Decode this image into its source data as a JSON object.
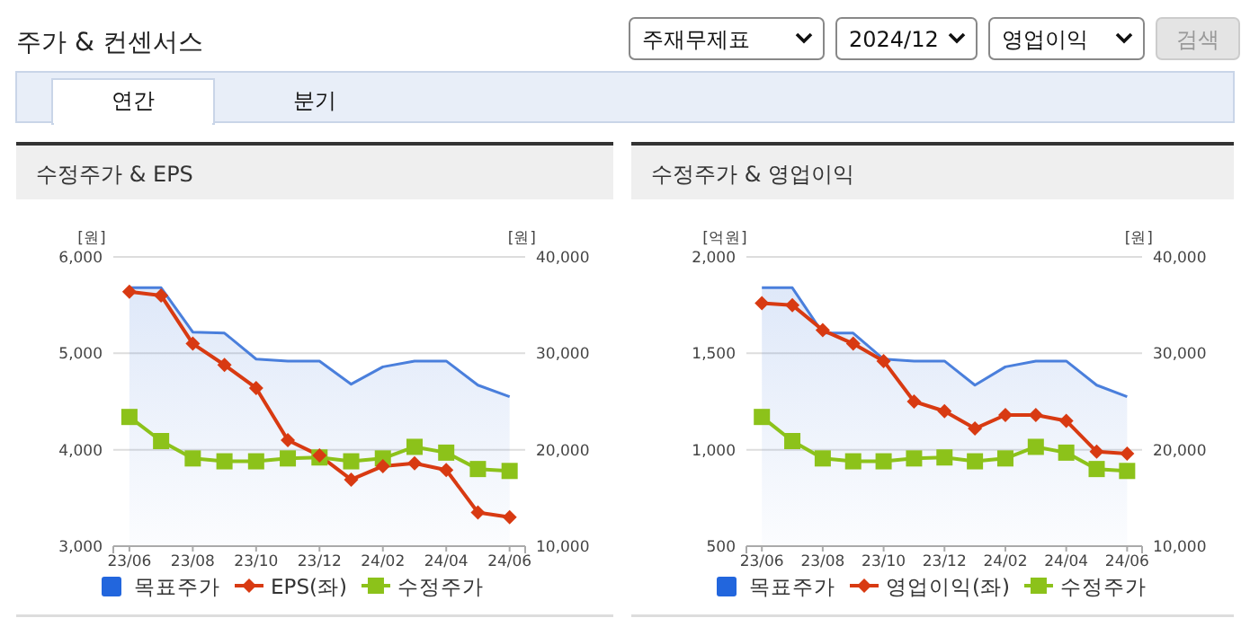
{
  "chart_data": [
    {
      "type": "other",
      "title": "주가 & 컨센서스",
      "annotations": [
        "주재무제표",
        "2024/12",
        "영업이익",
        "검색",
        "연간",
        "분기"
      ]
    },
    {
      "type": "line",
      "title": "수정주가 & EPS",
      "ylabel": "[원]",
      "y2label": "[원]",
      "x": [
        "2023-06",
        "2023-07",
        "2023-08",
        "2023-09",
        "2023-10",
        "2023-11",
        "2023-12",
        "2024-01",
        "2024-02",
        "2024-03",
        "2024-04",
        "2024-05",
        "2024-06"
      ],
      "xlim": [
        "2023-05-16",
        "2024-06-16"
      ],
      "xticks": [
        {
          "value": "2023-06",
          "label": "23/06"
        },
        {
          "value": "2023-08",
          "label": "23/08"
        },
        {
          "value": "2023-10",
          "label": "23/10"
        },
        {
          "value": "2023-12",
          "label": "23/12"
        },
        {
          "value": "2024-02",
          "label": "24/02"
        },
        {
          "value": "2024-04",
          "label": "24/04"
        },
        {
          "value": "2024-06",
          "label": "24/06"
        }
      ],
      "ylim": [
        3000,
        6000
      ],
      "yticks": [
        {
          "value": 3000,
          "label": "3,000"
        },
        {
          "value": 4000,
          "label": "4,000"
        },
        {
          "value": 5000,
          "label": "5,000"
        },
        {
          "value": 6000,
          "label": "6,000"
        }
      ],
      "y2lim": [
        10000,
        40000
      ],
      "y2ticks": [
        {
          "value": 10000,
          "label": "10,000"
        },
        {
          "value": 20000,
          "label": "20,000"
        },
        {
          "value": 30000,
          "label": "30,000"
        },
        {
          "value": 40000,
          "label": "40,000"
        }
      ],
      "grid": "y",
      "legend": "bottom",
      "series": [
        {
          "name": "목표주가",
          "type": "area",
          "axis": "y2",
          "color": "#4a7fdc",
          "marker": "none",
          "values": [
            36800,
            36800,
            32200,
            32100,
            29400,
            29200,
            29200,
            26800,
            28600,
            29200,
            29200,
            26700,
            25500
          ]
        },
        {
          "name": "EPS(좌)",
          "type": "line",
          "color": "#d83a12",
          "marker": "diamond",
          "values": [
            5640,
            5600,
            5100,
            4880,
            4640,
            4100,
            3940,
            3690,
            3830,
            3860,
            3790,
            3350,
            3300
          ]
        },
        {
          "name": "수정주가",
          "type": "line",
          "axis": "y2",
          "color": "#8cc21a",
          "marker": "square",
          "values": [
            23400,
            20900,
            19100,
            18800,
            18800,
            19100,
            19200,
            18800,
            19100,
            20300,
            19700,
            18000,
            17800
          ]
        }
      ]
    },
    {
      "type": "line",
      "title": "수정주가 & 영업이익",
      "ylabel": "[억원]",
      "y2label": "[원]",
      "x": [
        "2023-06",
        "2023-07",
        "2023-08",
        "2023-09",
        "2023-10",
        "2023-11",
        "2023-12",
        "2024-01",
        "2024-02",
        "2024-03",
        "2024-04",
        "2024-05",
        "2024-06"
      ],
      "xlim": [
        "2023-05-16",
        "2024-06-16"
      ],
      "xticks": [
        {
          "value": "2023-06",
          "label": "23/06"
        },
        {
          "value": "2023-08",
          "label": "23/08"
        },
        {
          "value": "2023-10",
          "label": "23/10"
        },
        {
          "value": "2023-12",
          "label": "23/12"
        },
        {
          "value": "2024-02",
          "label": "24/02"
        },
        {
          "value": "2024-04",
          "label": "24/04"
        },
        {
          "value": "2024-06",
          "label": "24/06"
        }
      ],
      "ylim": [
        500,
        2000
      ],
      "yticks": [
        500,
        {
          "value": 1000,
          "label": "1,000"
        },
        {
          "value": 1500,
          "label": "1,500"
        },
        {
          "value": 2000,
          "label": "2,000"
        }
      ],
      "y2lim": [
        10000,
        40000
      ],
      "y2ticks": [
        {
          "value": 10000,
          "label": "10,000"
        },
        {
          "value": 20000,
          "label": "20,000"
        },
        {
          "value": 30000,
          "label": "30,000"
        },
        {
          "value": 40000,
          "label": "40,000"
        }
      ],
      "grid": "y",
      "legend": "bottom",
      "series": [
        {
          "name": "목표주가",
          "type": "area",
          "axis": "y2",
          "color": "#4a7fdc",
          "marker": "none",
          "values": [
            36800,
            36800,
            32100,
            32100,
            29400,
            29200,
            29200,
            26700,
            28600,
            29200,
            29200,
            26700,
            25500
          ]
        },
        {
          "name": "영업이익(좌)",
          "type": "line",
          "color": "#d83a12",
          "marker": "diamond",
          "values": [
            1760,
            1750,
            1620,
            1550,
            1460,
            1250,
            1200,
            1110,
            1180,
            1180,
            1150,
            990,
            980
          ]
        },
        {
          "name": "수정주가",
          "type": "line",
          "axis": "y2",
          "color": "#8cc21a",
          "marker": "square",
          "values": [
            23400,
            20900,
            19100,
            18800,
            18800,
            19100,
            19200,
            18800,
            19100,
            20300,
            19700,
            18000,
            17800
          ]
        }
      ]
    }
  ]
}
